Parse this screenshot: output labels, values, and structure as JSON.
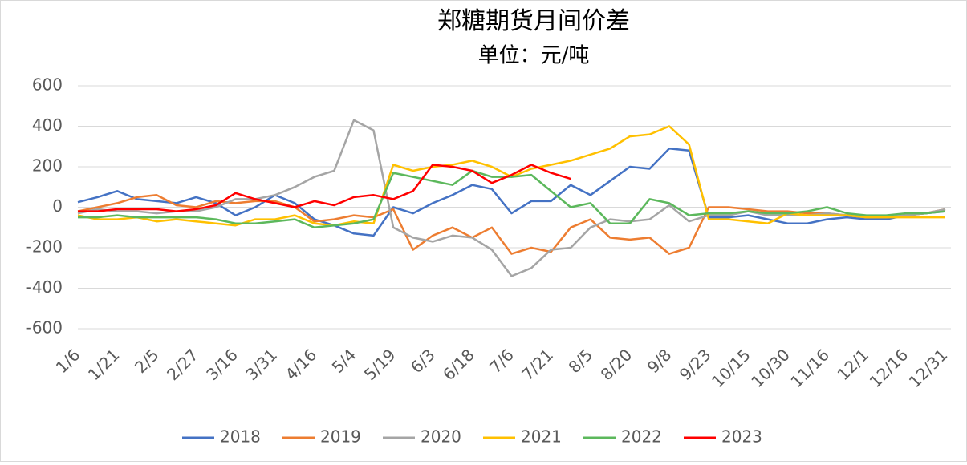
{
  "chart_data": {
    "type": "line",
    "title": "郑糖期货月间价差",
    "subtitle": "单位：元/吨",
    "categories": [
      "1/6",
      null,
      "1/21",
      null,
      "2/5",
      null,
      "2/27",
      null,
      "3/16",
      null,
      "3/31",
      null,
      "4/16",
      null,
      "5/4",
      null,
      "5/19",
      null,
      "6/3",
      null,
      "6/18",
      null,
      "7/6",
      null,
      "7/21",
      null,
      "8/5",
      null,
      "8/20",
      null,
      "9/8",
      null,
      "9/23",
      null,
      "10/15",
      null,
      "10/30",
      null,
      "11/16",
      null,
      "12/1",
      null,
      "12/16",
      null,
      "12/31"
    ],
    "ylim": [
      -600,
      600
    ],
    "yticks": [
      -600,
      -400,
      -200,
      0,
      200,
      400,
      600
    ],
    "grid": true,
    "legend": "bottom",
    "series": [
      {
        "name": "2018",
        "color": "#4472c4",
        "values": [
          25,
          50,
          80,
          40,
          30,
          20,
          50,
          20,
          -40,
          0,
          60,
          20,
          -60,
          -90,
          -130,
          -140,
          0,
          -30,
          20,
          60,
          110,
          90,
          -30,
          30,
          30,
          110,
          60,
          130,
          200,
          190,
          290,
          280,
          -50,
          -50,
          -40,
          -60,
          -80,
          -80,
          -60,
          -50,
          -60,
          -60,
          -40,
          -30,
          -20
        ]
      },
      {
        "name": "2019",
        "color": "#ed7d31",
        "values": [
          -20,
          0,
          20,
          50,
          60,
          10,
          0,
          30,
          20,
          30,
          30,
          0,
          -70,
          -60,
          -40,
          -50,
          -10,
          -210,
          -140,
          -100,
          -150,
          -100,
          -230,
          -200,
          -220,
          -100,
          -60,
          -150,
          -160,
          -150,
          -230,
          -200,
          0,
          0,
          -10,
          -20,
          -20,
          -30,
          -30,
          -40,
          -50,
          -50,
          -40,
          -30,
          -10
        ]
      },
      {
        "name": "2020",
        "color": "#a5a5a5",
        "values": [
          -30,
          -10,
          -20,
          -20,
          -30,
          -20,
          -20,
          0,
          40,
          40,
          60,
          100,
          150,
          180,
          430,
          380,
          -100,
          -150,
          -170,
          -140,
          -150,
          -210,
          -340,
          -300,
          -210,
          -200,
          -100,
          -60,
          -70,
          -60,
          10,
          -70,
          -40,
          -40,
          -20,
          -40,
          -40,
          -40,
          -30,
          -40,
          -50,
          -50,
          -40,
          -30,
          -10
        ]
      },
      {
        "name": "2021",
        "color": "#ffc000",
        "values": [
          -40,
          -60,
          -60,
          -50,
          -70,
          -60,
          -70,
          -80,
          -90,
          -60,
          -60,
          -40,
          -80,
          -90,
          -70,
          -80,
          210,
          180,
          200,
          210,
          230,
          200,
          150,
          190,
          210,
          230,
          260,
          290,
          350,
          360,
          400,
          310,
          -60,
          -60,
          -70,
          -80,
          -30,
          -40,
          -40,
          -40,
          -50,
          -50,
          -50,
          -50,
          -50
        ]
      },
      {
        "name": "2022",
        "color": "#5cb85c",
        "values": [
          -50,
          -50,
          -40,
          -50,
          -50,
          -50,
          -50,
          -60,
          -80,
          -80,
          -70,
          -60,
          -100,
          -90,
          -80,
          -60,
          170,
          150,
          130,
          110,
          180,
          150,
          150,
          160,
          80,
          0,
          20,
          -80,
          -80,
          40,
          20,
          -40,
          -30,
          -30,
          -20,
          -30,
          -30,
          -20,
          0,
          -30,
          -40,
          -40,
          -30,
          -30,
          -20
        ]
      },
      {
        "name": "2023",
        "color": "#ff0000",
        "values": [
          -20,
          -20,
          -10,
          -10,
          -10,
          -20,
          -10,
          10,
          70,
          40,
          20,
          0,
          30,
          10,
          50,
          60,
          40,
          80,
          210,
          200,
          180,
          120,
          160,
          210,
          170,
          140,
          null,
          null,
          null,
          null,
          null,
          null,
          null,
          null,
          null,
          null,
          null,
          null,
          null,
          null,
          null,
          null,
          null,
          null,
          null
        ]
      }
    ]
  }
}
